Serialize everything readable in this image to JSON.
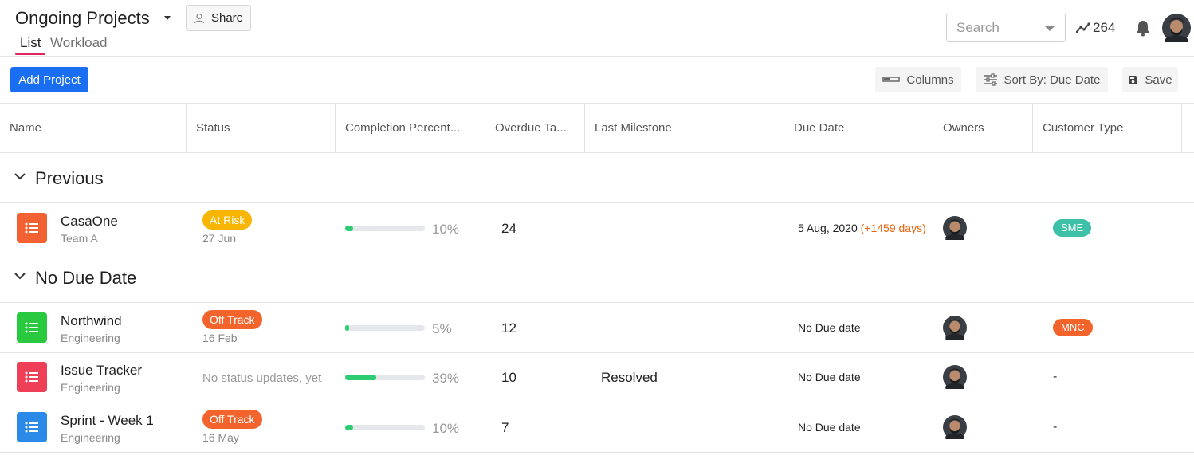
{
  "header": {
    "title": "Ongoing Projects",
    "share_label": "Share",
    "tabs": [
      {
        "label": "List",
        "active": true
      },
      {
        "label": "Workload",
        "active": false
      }
    ],
    "search_placeholder": "Search",
    "activity_count": "264",
    "accent_color": "#e0245e"
  },
  "toolbar": {
    "add_label": "Add Project",
    "columns_label": "Columns",
    "sort_label": "Sort By: Due Date",
    "save_label": "Save"
  },
  "columns": [
    "Name",
    "Status",
    "Completion Percent...",
    "Overdue Ta...",
    "Last Milestone",
    "Due Date",
    "Owners",
    "Customer Type"
  ],
  "groups": [
    {
      "title": "Previous",
      "rows": [
        {
          "name": "CasaOne",
          "team": "Team A",
          "icon_color": "#f26131",
          "status": "At Risk",
          "status_color": "#f7b500",
          "status_date": "27 Jun",
          "completion": 10,
          "completion_label": "10%",
          "overdue": "24",
          "milestone": "",
          "due": "5 Aug, 2020",
          "due_extra": "(+1459 days)",
          "customer_type": "SME",
          "customer_color": "#3cc0a8"
        }
      ]
    },
    {
      "title": "No Due Date",
      "rows": [
        {
          "name": "Northwind",
          "team": "Engineering",
          "icon_color": "#28c93f",
          "status": "Off Track",
          "status_color": "#f2642c",
          "status_date": "16 Feb",
          "completion": 5,
          "completion_label": "5%",
          "overdue": "12",
          "milestone": "",
          "due": "No Due date",
          "due_extra": "",
          "customer_type": "MNC",
          "customer_color": "#f2642c"
        },
        {
          "name": "Issue Tracker",
          "team": "Engineering",
          "icon_color": "#ef3f56",
          "status_text": "No status updates, yet",
          "completion": 39,
          "completion_label": "39%",
          "overdue": "10",
          "milestone": "Resolved",
          "due": "No Due date",
          "due_extra": "",
          "customer_type": "-"
        },
        {
          "name": "Sprint - Week 1",
          "team": "Engineering",
          "icon_color": "#2b8ae8",
          "status": "Off Track",
          "status_color": "#f2642c",
          "status_date": "16 May",
          "completion": 10,
          "completion_label": "10%",
          "overdue": "7",
          "milestone": "",
          "due": "No Due date",
          "due_extra": "",
          "customer_type": "-"
        }
      ]
    }
  ]
}
